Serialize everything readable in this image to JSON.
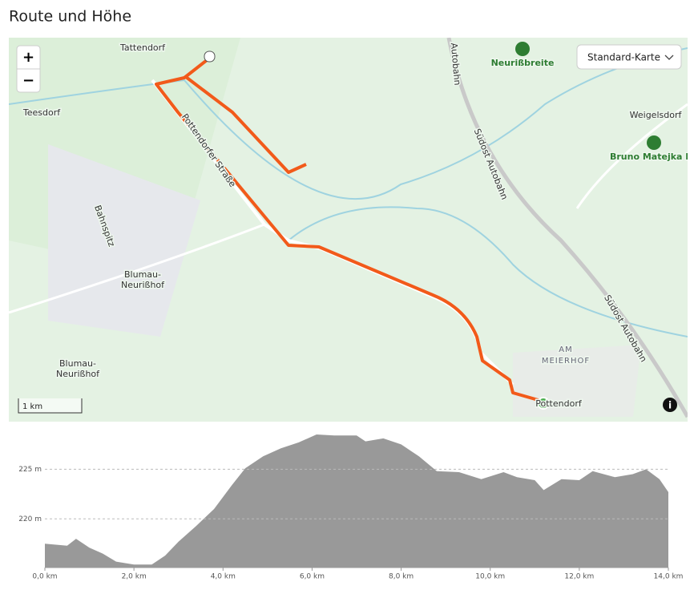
{
  "header": {
    "title": "Route und Höhe"
  },
  "map": {
    "controls": {
      "zoom_in": "+",
      "zoom_out": "−",
      "layer": "Standard-Karte",
      "scale": "1 km",
      "info": "i"
    },
    "labels": [
      "Tattendorf",
      "Teesdorf",
      "Bahnspitz",
      "Blumau-",
      "Neurißhof",
      "Blumau-",
      "Neurißhof",
      "Pottendorfer Straße",
      "Südost Autobahn",
      "Südost Autobahn",
      "Autobahn",
      "Neurißbreite",
      "Weigelsdorf",
      "Bruno Matejka Par",
      "AM",
      "MEIERHOF",
      "Pottendorf"
    ]
  },
  "chart_data": {
    "type": "area",
    "color": "#999999",
    "x": [
      0.0,
      0.5,
      0.7,
      1.0,
      1.3,
      1.6,
      2.0,
      2.4,
      2.7,
      3.0,
      3.4,
      3.8,
      4.2,
      4.5,
      4.9,
      5.3,
      5.7,
      6.1,
      6.5,
      7.0,
      7.2,
      7.6,
      8.0,
      8.4,
      8.8,
      9.3,
      9.8,
      10.3,
      10.6,
      11.0,
      11.2,
      11.6,
      12.0,
      12.3,
      12.8,
      13.2,
      13.5,
      13.8,
      14.0
    ],
    "values": [
      217.5,
      217.3,
      218.0,
      217.1,
      216.5,
      215.7,
      215.4,
      215.4,
      216.3,
      217.7,
      219.3,
      221.0,
      223.4,
      225.1,
      226.3,
      227.1,
      227.7,
      228.5,
      228.4,
      228.4,
      227.8,
      228.1,
      227.5,
      226.3,
      224.8,
      224.7,
      224.0,
      224.7,
      224.2,
      223.9,
      222.9,
      224.0,
      223.9,
      224.8,
      224.2,
      224.5,
      225.0,
      224.0,
      222.7
    ],
    "xlim": [
      0,
      14
    ],
    "ylim": [
      215.1,
      228.9
    ],
    "xticks": [
      {
        "value": 0,
        "label": "0,0 km"
      },
      {
        "value": 2,
        "label": "2,0 km"
      },
      {
        "value": 4,
        "label": "4,0 km"
      },
      {
        "value": 6,
        "label": "6,0 km"
      },
      {
        "value": 8,
        "label": "8,0 km"
      },
      {
        "value": 10,
        "label": "10,0 km"
      },
      {
        "value": 12,
        "label": "12,0 km"
      },
      {
        "value": 14,
        "label": "14,0 km"
      }
    ],
    "yticks": [
      {
        "value": 220,
        "label": "220 m"
      },
      {
        "value": 225,
        "label": "225 m"
      }
    ],
    "grid": true
  }
}
